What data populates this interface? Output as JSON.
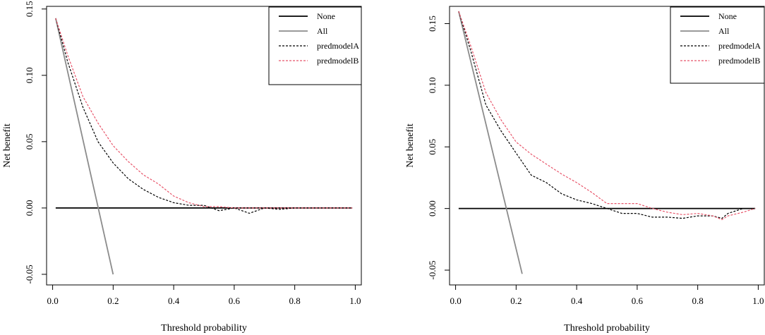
{
  "chart_data": [
    {
      "type": "line",
      "xlabel": "Threshold probability",
      "ylabel": "Net benefit",
      "xlim": [
        -0.02,
        1.02
      ],
      "ylim": [
        -0.058,
        0.152
      ],
      "xticks": [
        "0.0",
        "0.2",
        "0.4",
        "0.6",
        "0.8",
        "1.0"
      ],
      "yticks": [
        "-0.05",
        "0.00",
        "0.05",
        "0.10",
        "0.15"
      ],
      "legend_position": "top-right",
      "series": [
        {
          "name": "None",
          "color": "#000000",
          "style": "solid",
          "x": [
            0.01,
            0.99
          ],
          "y": [
            0.0,
            0.0
          ]
        },
        {
          "name": "All",
          "color": "#8c8c8c",
          "style": "solid",
          "x": [
            0.01,
            0.2
          ],
          "y": [
            0.143,
            -0.05
          ]
        },
        {
          "name": "predmodelA",
          "color": "#000000",
          "style": "dashed",
          "x": [
            0.01,
            0.05,
            0.1,
            0.15,
            0.2,
            0.25,
            0.3,
            0.35,
            0.4,
            0.45,
            0.5,
            0.55,
            0.6,
            0.65,
            0.7,
            0.75,
            0.8,
            0.85,
            0.9,
            0.95,
            0.99
          ],
          "y": [
            0.143,
            0.11,
            0.076,
            0.05,
            0.034,
            0.022,
            0.014,
            0.008,
            0.004,
            0.002,
            0.002,
            -0.002,
            0.0,
            -0.004,
            0.0,
            -0.001,
            0.0,
            0.0,
            0.0,
            0.0,
            0.0
          ]
        },
        {
          "name": "predmodelB",
          "color": "#e8566b",
          "style": "dashed",
          "x": [
            0.01,
            0.05,
            0.1,
            0.15,
            0.2,
            0.25,
            0.3,
            0.35,
            0.4,
            0.45,
            0.5,
            0.55,
            0.6,
            0.65,
            0.7,
            0.75,
            0.8,
            0.85,
            0.9,
            0.95,
            0.99
          ],
          "y": [
            0.143,
            0.115,
            0.084,
            0.064,
            0.047,
            0.035,
            0.025,
            0.018,
            0.009,
            0.004,
            0.001,
            0.001,
            0.0,
            0.0,
            0.0,
            0.0,
            0.0,
            0.0,
            0.0,
            0.0,
            0.0
          ]
        }
      ]
    },
    {
      "type": "line",
      "xlabel": "Threshold probability",
      "ylabel": "Net benefit",
      "xlim": [
        -0.02,
        1.02
      ],
      "ylim": [
        -0.062,
        0.164
      ],
      "xticks": [
        "0.0",
        "0.2",
        "0.4",
        "0.6",
        "0.8",
        "1.0"
      ],
      "yticks": [
        "-0.05",
        "0.00",
        "0.05",
        "0.10",
        "0.15"
      ],
      "legend_position": "top-right",
      "series": [
        {
          "name": "None",
          "color": "#000000",
          "style": "solid",
          "x": [
            0.01,
            0.99
          ],
          "y": [
            0.0,
            0.0
          ]
        },
        {
          "name": "All",
          "color": "#8c8c8c",
          "style": "solid",
          "x": [
            0.01,
            0.22
          ],
          "y": [
            0.16,
            -0.053
          ]
        },
        {
          "name": "predmodelA",
          "color": "#000000",
          "style": "dashed",
          "x": [
            0.01,
            0.05,
            0.1,
            0.15,
            0.2,
            0.25,
            0.3,
            0.35,
            0.4,
            0.45,
            0.5,
            0.55,
            0.6,
            0.65,
            0.7,
            0.75,
            0.8,
            0.85,
            0.88,
            0.9,
            0.95,
            0.99
          ],
          "y": [
            0.16,
            0.128,
            0.084,
            0.063,
            0.045,
            0.027,
            0.021,
            0.012,
            0.007,
            0.004,
            0.0,
            -0.004,
            -0.004,
            -0.007,
            -0.007,
            -0.008,
            -0.006,
            -0.006,
            -0.008,
            -0.004,
            0.0,
            0.0
          ]
        },
        {
          "name": "predmodelB",
          "color": "#e8566b",
          "style": "dashed",
          "x": [
            0.01,
            0.05,
            0.1,
            0.15,
            0.2,
            0.25,
            0.3,
            0.35,
            0.4,
            0.45,
            0.5,
            0.55,
            0.6,
            0.65,
            0.7,
            0.75,
            0.8,
            0.85,
            0.88,
            0.9,
            0.95,
            0.99
          ],
          "y": [
            0.16,
            0.132,
            0.094,
            0.072,
            0.054,
            0.044,
            0.036,
            0.028,
            0.021,
            0.013,
            0.004,
            0.004,
            0.004,
            0.0,
            -0.003,
            -0.005,
            -0.004,
            -0.006,
            -0.009,
            -0.006,
            -0.003,
            0.0
          ]
        }
      ]
    }
  ]
}
